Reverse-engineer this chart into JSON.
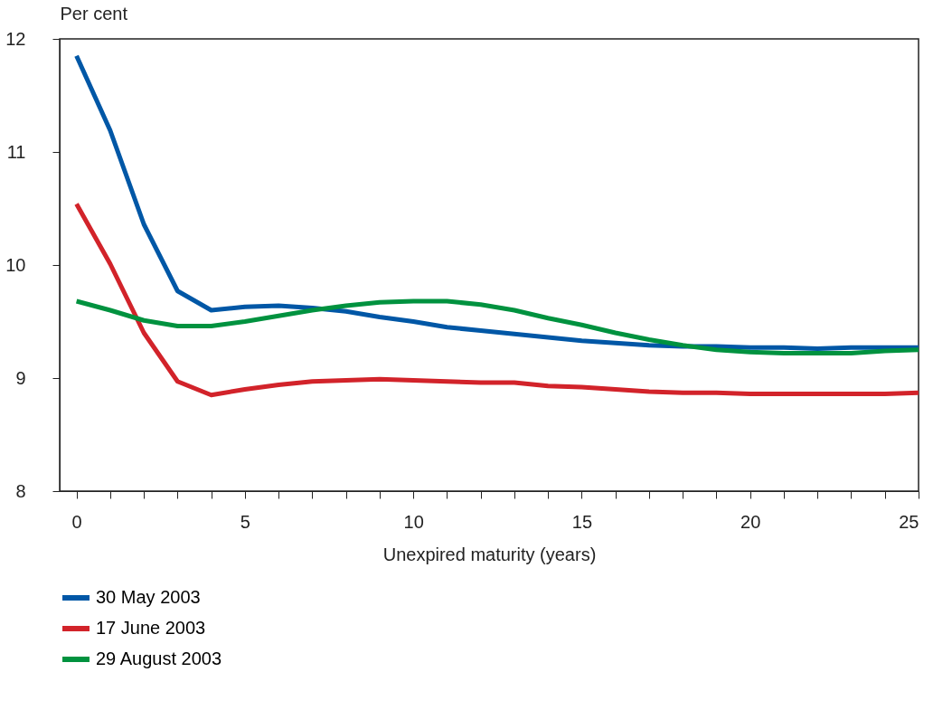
{
  "chart_data": {
    "type": "line",
    "xlabel": "Unexpired maturity (years)",
    "ylabel": "Per cent",
    "x": [
      0,
      1,
      2,
      3,
      4,
      5,
      6,
      7,
      8,
      9,
      10,
      11,
      12,
      13,
      14,
      15,
      16,
      17,
      18,
      19,
      20,
      21,
      22,
      23,
      24,
      25
    ],
    "series": [
      {
        "name": "30 May 2003",
        "color": "#0057a6",
        "values": [
          11.85,
          11.19,
          10.36,
          9.77,
          9.6,
          9.63,
          9.64,
          9.62,
          9.59,
          9.54,
          9.5,
          9.45,
          9.42,
          9.39,
          9.36,
          9.33,
          9.31,
          9.29,
          9.28,
          9.28,
          9.27,
          9.27,
          9.26,
          9.27,
          9.27,
          9.27
        ]
      },
      {
        "name": "17 June 2003",
        "color": "#d2232a",
        "values": [
          10.54,
          10.01,
          9.4,
          8.97,
          8.85,
          8.9,
          8.94,
          8.97,
          8.98,
          8.99,
          8.98,
          8.97,
          8.96,
          8.96,
          8.93,
          8.92,
          8.9,
          8.88,
          8.87,
          8.87,
          8.86,
          8.86,
          8.86,
          8.86,
          8.86,
          8.87
        ]
      },
      {
        "name": "29 August 2003",
        "color": "#00923f",
        "values": [
          9.68,
          9.6,
          9.51,
          9.46,
          9.46,
          9.5,
          9.55,
          9.6,
          9.64,
          9.67,
          9.68,
          9.68,
          9.65,
          9.6,
          9.53,
          9.47,
          9.4,
          9.34,
          9.29,
          9.25,
          9.23,
          9.22,
          9.22,
          9.22,
          9.24,
          9.25
        ]
      }
    ],
    "xlim": [
      -0.5,
      25
    ],
    "ylim": [
      8,
      12
    ],
    "xticks": [
      0,
      {
        "value": 1,
        "label": null
      },
      {
        "value": 2,
        "label": null
      },
      {
        "value": 3,
        "label": null
      },
      {
        "value": 4,
        "label": null
      },
      5,
      {
        "value": 6,
        "label": null
      },
      {
        "value": 7,
        "label": null
      },
      {
        "value": 8,
        "label": null
      },
      {
        "value": 9,
        "label": null
      },
      10,
      {
        "value": 11,
        "label": null
      },
      {
        "value": 12,
        "label": null
      },
      {
        "value": 13,
        "label": null
      },
      {
        "value": 14,
        "label": null
      },
      15,
      {
        "value": 16,
        "label": null
      },
      {
        "value": 17,
        "label": null
      },
      {
        "value": 18,
        "label": null
      },
      {
        "value": 19,
        "label": null
      },
      20,
      {
        "value": 21,
        "label": null
      },
      {
        "value": 22,
        "label": null
      },
      {
        "value": 23,
        "label": null
      },
      {
        "value": 24,
        "label": null
      },
      25
    ],
    "yticks": [
      8,
      9,
      10,
      11,
      12
    ],
    "grid": false,
    "legend": "bottom left",
    "marker": "none",
    "line_style": "solid"
  }
}
